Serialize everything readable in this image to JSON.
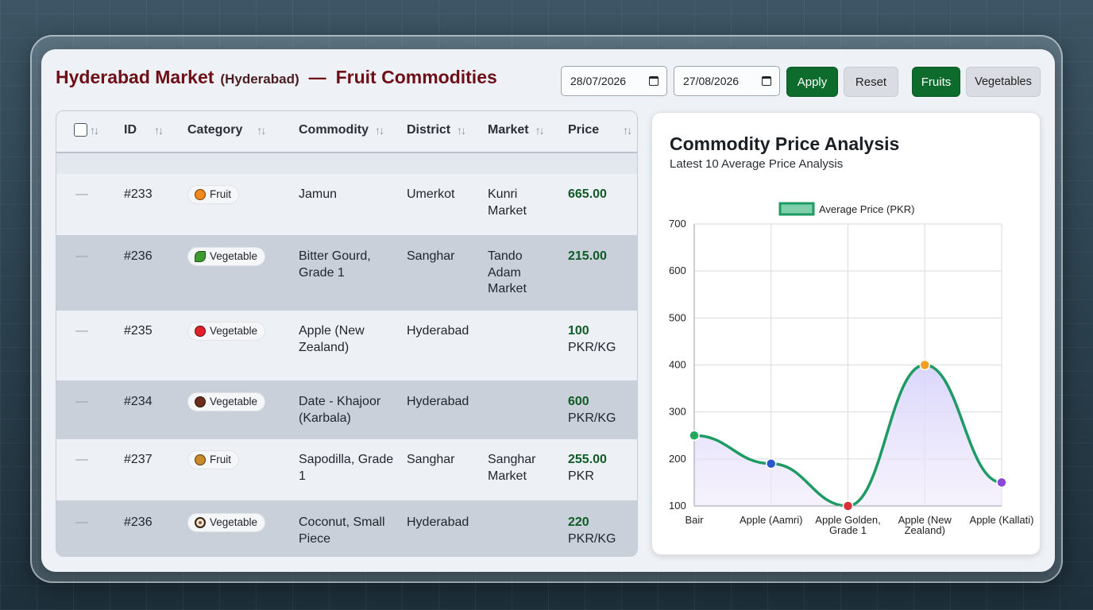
{
  "header": {
    "market_name": "Hyderabad Market",
    "city": "(Hyderabad)",
    "separator": "—",
    "section_title": "Fruit Commodities"
  },
  "filters": {
    "date_from": "28/07/2026",
    "date_to": "27/08/2026",
    "apply_label": "Apply",
    "reset_label": "Reset",
    "fruits_label": "Fruits",
    "vegetables_label": "Vegetables",
    "active_filter": "Fruits"
  },
  "table": {
    "columns": [
      "ID",
      "Category",
      "Commodity",
      "District",
      "Market",
      "Price"
    ],
    "rows": [
      {
        "dash": "—",
        "id": "#233",
        "category": "Fruit",
        "icon": "orange-icon",
        "commodity": "Jamun",
        "district": "Umerkot",
        "market": "Kunri Market",
        "price_num": "665.00",
        "price_unit": ""
      },
      {
        "dash": "—",
        "id": "#236",
        "category": "Vegetable",
        "icon": "bitter-gourd-icon",
        "commodity": "Bitter Gourd, Grade 1",
        "district": "Sanghar",
        "market": "Tando Adam Market",
        "price_num": "215.00",
        "price_unit": ""
      },
      {
        "dash": "—",
        "id": "#235",
        "category": "Vegetable",
        "icon": "apple-icon",
        "commodity": "Apple (New Zealand)",
        "district": "Hyderabad",
        "market": "",
        "price_num": "100",
        "price_unit": "PKR/KG"
      },
      {
        "dash": "—",
        "id": "#234",
        "category": "Vegetable",
        "icon": "date-icon",
        "commodity": "Date - Khajoor (Karbala)",
        "district": "Hyderabad",
        "market": "",
        "price_num": "600",
        "price_unit": "PKR/KG"
      },
      {
        "dash": "—",
        "id": "#237",
        "category": "Fruit",
        "icon": "sapodilla-icon",
        "commodity": "Sapodilla, Grade 1",
        "district": "Sanghar",
        "market": "Sanghar Market",
        "price_num": "255.00",
        "price_unit": "PKR"
      },
      {
        "dash": "—",
        "id": "#236",
        "category": "Vegetable",
        "icon": "coconut-icon",
        "commodity": "Coconut, Small Piece",
        "district": "Hyderabad",
        "market": "",
        "price_num": "220",
        "price_unit": "PKR/KG"
      }
    ]
  },
  "colors": {
    "brand": "#6e0f17",
    "accent_green": "#0d6b2c",
    "line": "#1e9a64",
    "fill": "#e6e2fb"
  },
  "chart": {
    "title": "Commodity Price Analysis",
    "subtitle": "Latest 10 Average Price Analysis"
  },
  "chart_data": {
    "type": "line",
    "categories": [
      "Bair",
      "Apple (Aamri)",
      "Apple Golden, Grade 1",
      "Apple (New Zealand)",
      "Apple (Kallati)"
    ],
    "series": [
      {
        "name": "Average Price (PKR)",
        "values": [
          250,
          190,
          100,
          400,
          150
        ]
      }
    ],
    "point_colors": [
      "#1faa5e",
      "#2a56c9",
      "#d8313a",
      "#f0a020",
      "#8a48d6"
    ],
    "ylim": [
      100,
      700
    ],
    "yticks": [
      100,
      200,
      300,
      400,
      500,
      600,
      700
    ],
    "grid": true,
    "legend": "top-center",
    "smooth": true,
    "filled": true
  }
}
